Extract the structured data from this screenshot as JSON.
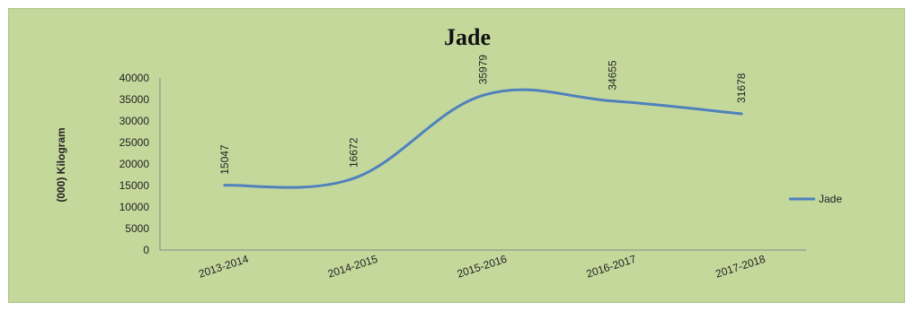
{
  "chart_data": {
    "type": "line",
    "title": "Jade",
    "ylabel": "(000) Kilogram",
    "xlabel": "",
    "categories": [
      "2013-2014",
      "2014-2015",
      "2015-2016",
      "2016-2017",
      "2017-2018"
    ],
    "series": [
      {
        "name": "Jade",
        "values": [
          15047,
          16672,
          35979,
          34655,
          31678
        ],
        "color": "#4f81bd"
      }
    ],
    "data_labels": [
      "15047",
      "16672",
      "35979",
      "34655",
      "31678"
    ],
    "ylim": [
      0,
      40000
    ],
    "yticks": [
      0,
      5000,
      10000,
      15000,
      20000,
      25000,
      30000,
      35000,
      40000
    ],
    "ytick_labels": [
      "0",
      "5000",
      "10000",
      "15000",
      "20000",
      "25000",
      "30000",
      "35000",
      "40000"
    ],
    "grid": false,
    "legend_position": "right",
    "background_color": "#c5d89c"
  }
}
